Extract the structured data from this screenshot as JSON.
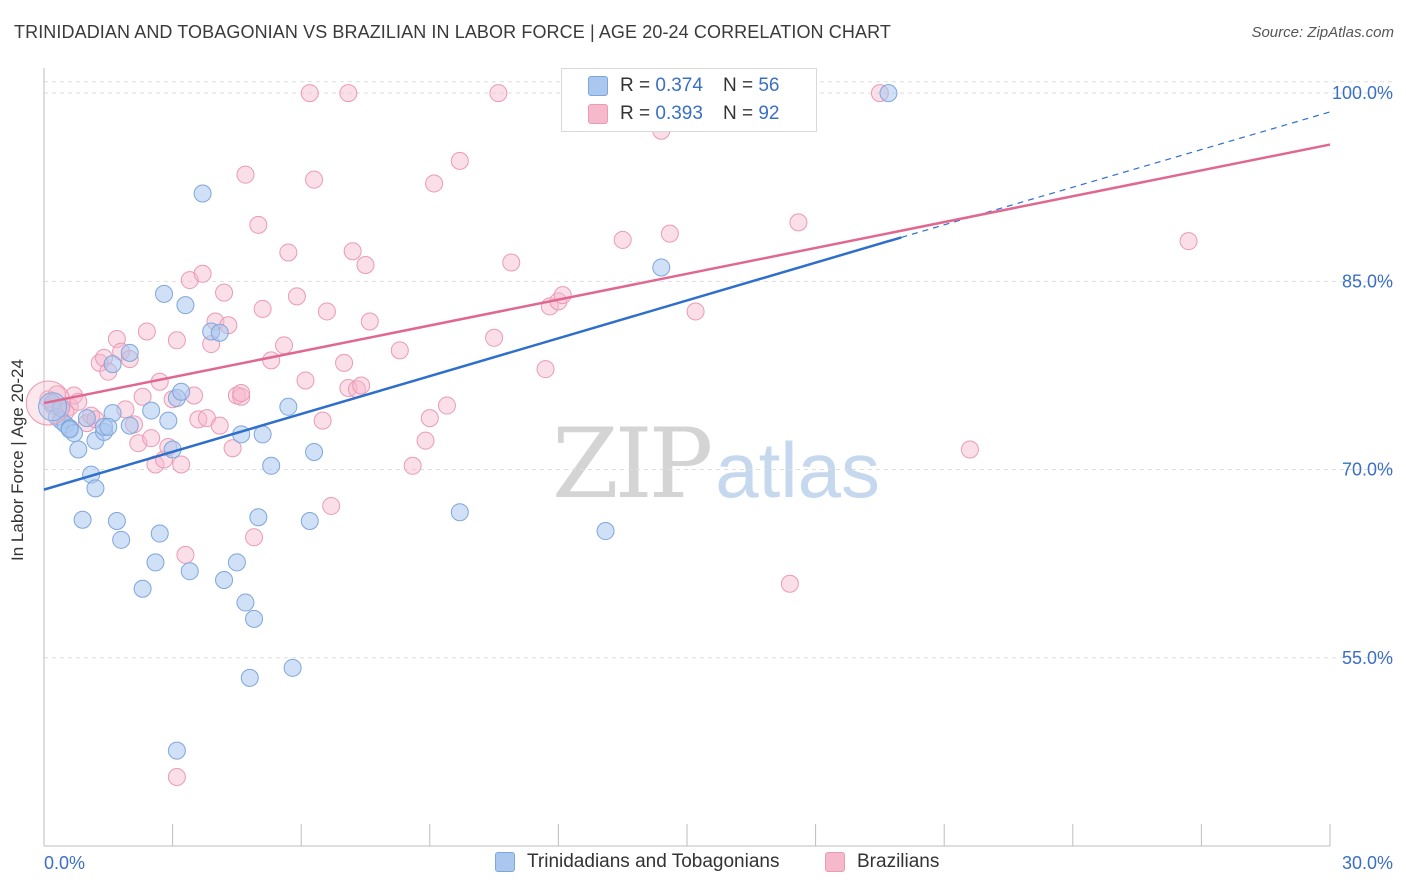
{
  "header": {
    "title": "TRINIDADIAN AND TOBAGONIAN VS BRAZILIAN IN LABOR FORCE | AGE 20-24 CORRELATION CHART",
    "source": "Source: ZipAtlas.com"
  },
  "legend": {
    "series1": {
      "r_label": "R =",
      "r_value": "0.374",
      "n_label": "N =",
      "n_value": "56"
    },
    "series2": {
      "r_label": "R =",
      "r_value": "0.393",
      "n_label": "N =",
      "n_value": "92"
    }
  },
  "watermark": {
    "part1": "ZIP",
    "part2": "atlas"
  },
  "colors": {
    "blue_fill": "#a9c7ef",
    "blue_stroke": "#7ea6dc",
    "blue_line": "#2f6fcc",
    "pink_fill": "#f6b9cc",
    "pink_stroke": "#eb9ab4",
    "pink_line": "#e06890",
    "tick_label": "#3a6fc4",
    "grid": "#dedede"
  },
  "chart_data": {
    "type": "scatter",
    "title": "TRINIDADIAN AND TOBAGONIAN VS BRAZILIAN IN LABOR FORCE | AGE 20-24 CORRELATION CHART",
    "xlabel": "",
    "ylabel": "In Labor Force | Age 20-24",
    "xlim": [
      0,
      30
    ],
    "ylim": [
      40,
      102
    ],
    "x_tick_labels": [
      "0.0%",
      "30.0%"
    ],
    "y_ticks": [
      55,
      70,
      85,
      100
    ],
    "y_tick_labels": [
      "55.0%",
      "70.0%",
      "85.0%",
      "100.0%"
    ],
    "grid": true,
    "legend_position": "top-center",
    "series": [
      {
        "name": "Trinidadians and Tobagonians",
        "color": "#a9c7ef",
        "r": 0.374,
        "n": 56,
        "trend": {
          "x": [
            0,
            20
          ],
          "y": [
            68.4,
            88.5
          ]
        },
        "trend_dashed": {
          "x": [
            20,
            30
          ],
          "y": [
            88.5,
            98.5
          ]
        },
        "points": [
          [
            0.2,
            75.3
          ],
          [
            0.3,
            74.2
          ],
          [
            0.4,
            73.9
          ],
          [
            0.5,
            73.6
          ],
          [
            0.6,
            73.3
          ],
          [
            0.7,
            72.9
          ],
          [
            0.8,
            71.6
          ],
          [
            1.1,
            69.6
          ],
          [
            1.0,
            74.1
          ],
          [
            1.2,
            72.3
          ],
          [
            1.4,
            73.0
          ],
          [
            1.6,
            74.5
          ],
          [
            1.7,
            65.9
          ],
          [
            1.8,
            64.4
          ],
          [
            2.0,
            79.3
          ],
          [
            1.6,
            78.4
          ],
          [
            2.5,
            74.7
          ],
          [
            2.6,
            62.6
          ],
          [
            2.7,
            64.9
          ],
          [
            2.8,
            84.0
          ],
          [
            2.9,
            73.9
          ],
          [
            3.0,
            71.6
          ],
          [
            3.1,
            75.7
          ],
          [
            3.2,
            76.2
          ],
          [
            3.3,
            83.1
          ],
          [
            3.4,
            61.9
          ],
          [
            3.7,
            92.0
          ],
          [
            3.9,
            81.0
          ],
          [
            4.1,
            80.9
          ],
          [
            4.2,
            61.2
          ],
          [
            4.5,
            62.6
          ],
          [
            4.6,
            72.8
          ],
          [
            4.7,
            59.4
          ],
          [
            4.9,
            58.1
          ],
          [
            5.0,
            66.2
          ],
          [
            5.1,
            72.8
          ],
          [
            5.3,
            70.3
          ],
          [
            5.7,
            75.0
          ],
          [
            6.2,
            65.9
          ],
          [
            6.3,
            71.4
          ],
          [
            5.8,
            54.2
          ],
          [
            4.8,
            53.4
          ],
          [
            3.1,
            47.6
          ],
          [
            9.7,
            66.6
          ],
          [
            12.6,
            100.0
          ],
          [
            13.1,
            65.1
          ],
          [
            14.4,
            86.1
          ],
          [
            19.7,
            100.0
          ],
          [
            1.2,
            68.5
          ],
          [
            0.9,
            66.0
          ],
          [
            2.3,
            60.5
          ],
          [
            1.4,
            73.4
          ],
          [
            0.4,
            74.9
          ],
          [
            0.6,
            73.2
          ],
          [
            2.0,
            73.5
          ],
          [
            1.5,
            73.4
          ]
        ]
      },
      {
        "name": "Brazilians",
        "color": "#f6b9cc",
        "r": 0.393,
        "n": 92,
        "trend": {
          "x": [
            0,
            30
          ],
          "y": [
            75.3,
            95.9
          ]
        },
        "points": [
          [
            0.1,
            75.6
          ],
          [
            0.2,
            75.1
          ],
          [
            0.4,
            74.9
          ],
          [
            0.6,
            75.0
          ],
          [
            0.7,
            75.9
          ],
          [
            0.8,
            75.4
          ],
          [
            1.0,
            73.7
          ],
          [
            1.1,
            74.3
          ],
          [
            1.3,
            78.5
          ],
          [
            1.4,
            78.9
          ],
          [
            1.5,
            77.8
          ],
          [
            1.7,
            80.4
          ],
          [
            1.8,
            79.4
          ],
          [
            2.0,
            78.8
          ],
          [
            2.2,
            72.1
          ],
          [
            2.3,
            75.8
          ],
          [
            2.4,
            81.0
          ],
          [
            2.6,
            70.4
          ],
          [
            2.7,
            77.0
          ],
          [
            2.8,
            70.8
          ],
          [
            2.9,
            71.8
          ],
          [
            3.0,
            75.6
          ],
          [
            3.1,
            80.3
          ],
          [
            3.2,
            70.4
          ],
          [
            3.3,
            63.2
          ],
          [
            3.4,
            85.1
          ],
          [
            3.5,
            75.9
          ],
          [
            3.6,
            74.0
          ],
          [
            3.7,
            85.6
          ],
          [
            3.8,
            74.1
          ],
          [
            3.9,
            80.0
          ],
          [
            4.0,
            81.8
          ],
          [
            4.1,
            73.5
          ],
          [
            4.2,
            84.1
          ],
          [
            4.3,
            81.5
          ],
          [
            4.4,
            71.7
          ],
          [
            4.5,
            75.9
          ],
          [
            4.6,
            75.8
          ],
          [
            4.7,
            93.5
          ],
          [
            4.9,
            64.6
          ],
          [
            5.0,
            89.5
          ],
          [
            5.1,
            82.8
          ],
          [
            5.3,
            78.7
          ],
          [
            5.6,
            79.9
          ],
          [
            5.7,
            87.3
          ],
          [
            5.9,
            83.8
          ],
          [
            6.1,
            77.1
          ],
          [
            6.2,
            100.0
          ],
          [
            6.3,
            93.1
          ],
          [
            6.5,
            73.9
          ],
          [
            6.6,
            82.6
          ],
          [
            6.7,
            67.1
          ],
          [
            7.0,
            78.5
          ],
          [
            7.1,
            76.5
          ],
          [
            7.2,
            87.4
          ],
          [
            7.3,
            76.4
          ],
          [
            7.4,
            76.7
          ],
          [
            7.5,
            86.3
          ],
          [
            7.6,
            81.8
          ],
          [
            7.1,
            100.0
          ],
          [
            8.3,
            79.5
          ],
          [
            8.6,
            70.3
          ],
          [
            8.9,
            72.3
          ],
          [
            9.0,
            74.1
          ],
          [
            9.1,
            92.8
          ],
          [
            9.4,
            75.1
          ],
          [
            9.7,
            94.6
          ],
          [
            10.5,
            80.5
          ],
          [
            10.6,
            100.0
          ],
          [
            10.9,
            86.5
          ],
          [
            11.7,
            78.0
          ],
          [
            11.8,
            83.0
          ],
          [
            12.0,
            83.4
          ],
          [
            12.1,
            83.9
          ],
          [
            13.5,
            88.3
          ],
          [
            14.4,
            97.0
          ],
          [
            14.6,
            88.8
          ],
          [
            15.2,
            82.6
          ],
          [
            15.9,
            100.0
          ],
          [
            17.4,
            60.9
          ],
          [
            17.6,
            89.7
          ],
          [
            19.5,
            100.0
          ],
          [
            21.6,
            71.6
          ],
          [
            26.7,
            88.2
          ],
          [
            3.1,
            45.5
          ],
          [
            2.1,
            73.6
          ],
          [
            1.2,
            74.0
          ],
          [
            0.5,
            74.6
          ],
          [
            1.9,
            74.8
          ],
          [
            0.3,
            76.0
          ],
          [
            4.6,
            76.1
          ],
          [
            2.5,
            72.5
          ]
        ]
      }
    ]
  },
  "bottom_legend": {
    "series1_label": "Trinidadians and Tobagonians",
    "series2_label": "Brazilians"
  }
}
